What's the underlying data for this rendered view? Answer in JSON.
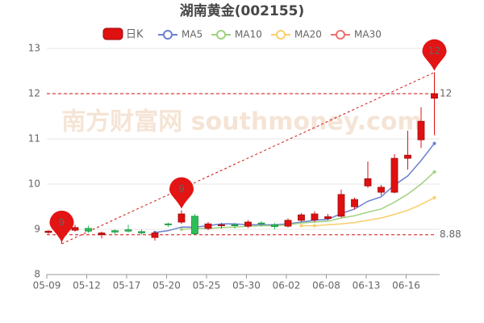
{
  "chart_data": {
    "type": "candlestick",
    "title": "湖南黄金(002155)",
    "watermark": "南方财富网 southmoney.com",
    "categories": [
      "05-09",
      null,
      null,
      "05-12",
      null,
      null,
      "05-17",
      null,
      null,
      "05-20",
      null,
      null,
      "05-25",
      null,
      null,
      "05-30",
      null,
      null,
      "06-02",
      null,
      null,
      "06-08",
      null,
      null,
      "06-13",
      null,
      null,
      "06-16",
      null,
      null
    ],
    "candle_name": "日K",
    "up_color": "#e01010",
    "down_color": "#2dbf57",
    "open": [
      8.93,
      8.92,
      8.98,
      9.02,
      8.88,
      8.97,
      8.99,
      8.95,
      8.82,
      9.12,
      9.16,
      9.29,
      9.02,
      9.08,
      9.1,
      9.07,
      9.14,
      9.1,
      9.07,
      9.2,
      9.21,
      9.24,
      9.29,
      9.5,
      9.96,
      9.82,
      9.82,
      10.57,
      10.98,
      11.9
    ],
    "close": [
      8.96,
      8.96,
      9.04,
      8.96,
      8.92,
      8.94,
      8.96,
      8.92,
      8.92,
      9.1,
      9.34,
      8.9,
      9.12,
      9.1,
      9.08,
      9.16,
      9.12,
      9.06,
      9.2,
      9.32,
      9.34,
      9.28,
      9.77,
      9.66,
      10.12,
      9.93,
      10.57,
      10.64,
      11.39,
      12.0
    ],
    "high": [
      8.98,
      9.02,
      9.1,
      9.08,
      8.95,
      9.0,
      9.1,
      9.0,
      8.95,
      9.15,
      9.42,
      9.34,
      9.16,
      9.14,
      9.14,
      9.2,
      9.18,
      9.14,
      9.24,
      9.36,
      9.4,
      9.34,
      9.88,
      9.7,
      10.5,
      9.98,
      10.66,
      11.18,
      11.7,
      12.47
    ],
    "low": [
      8.9,
      8.68,
      8.95,
      8.92,
      8.8,
      8.9,
      8.93,
      8.88,
      8.75,
      9.05,
      9.12,
      8.88,
      8.98,
      9.02,
      9.02,
      9.03,
      9.06,
      9.0,
      9.04,
      9.16,
      9.16,
      9.2,
      9.26,
      9.44,
      9.92,
      9.75,
      9.8,
      10.32,
      10.8,
      11.08
    ],
    "series": [
      {
        "name": "MA5",
        "color": "#6b7fd0",
        "values": [
          null,
          null,
          null,
          null,
          null,
          null,
          null,
          null,
          8.93,
          8.97,
          9.05,
          9.05,
          9.08,
          9.12,
          9.12,
          9.1,
          9.1,
          9.1,
          9.12,
          9.16,
          9.2,
          9.22,
          9.35,
          9.45,
          9.62,
          9.72,
          9.98,
          10.18,
          10.52,
          10.9
        ]
      },
      {
        "name": "MA10",
        "color": "#9fd17f",
        "values": [
          null,
          null,
          null,
          null,
          null,
          null,
          null,
          null,
          null,
          null,
          9.0,
          9.02,
          9.02,
          9.04,
          9.05,
          9.07,
          9.08,
          9.08,
          9.1,
          9.14,
          9.16,
          9.18,
          9.25,
          9.3,
          9.38,
          9.45,
          9.6,
          9.78,
          10.0,
          10.27
        ]
      },
      {
        "name": "MA20",
        "color": "#f8cf6a",
        "values": [
          null,
          null,
          null,
          null,
          null,
          null,
          null,
          null,
          null,
          null,
          null,
          null,
          null,
          null,
          null,
          null,
          null,
          null,
          null,
          9.08,
          9.08,
          9.1,
          9.12,
          9.15,
          9.2,
          9.25,
          9.33,
          9.42,
          9.55,
          9.7
        ]
      },
      {
        "name": "MA30",
        "color": "#ee7070",
        "values": [
          null,
          null,
          null,
          null,
          null,
          null,
          null,
          null,
          null,
          null,
          null,
          null,
          null,
          null,
          null,
          null,
          null,
          null,
          null,
          null,
          null,
          null,
          null,
          null,
          null,
          null,
          null,
          null,
          null,
          null
        ]
      }
    ],
    "mark_points": [
      {
        "index": 29,
        "value": 12.47,
        "label": "12"
      },
      {
        "index": 1,
        "value": 8.68,
        "label": "9"
      },
      {
        "index": 10,
        "value": 9.42,
        "label": "9"
      }
    ],
    "mark_lines": [
      12,
      8.88
    ],
    "ylim": [
      8,
      13
    ],
    "yticks": [
      8,
      9,
      10,
      11,
      12,
      13
    ],
    "grid": true
  }
}
